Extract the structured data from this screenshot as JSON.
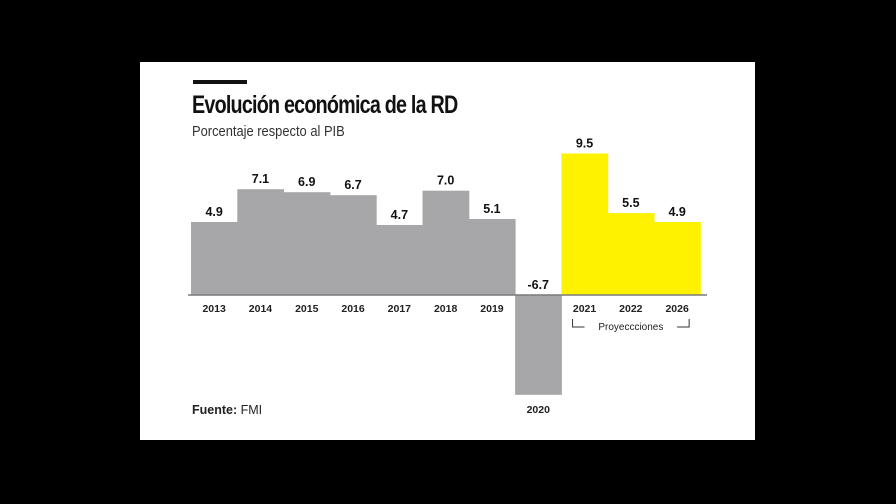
{
  "chart_data": {
    "type": "bar",
    "title": "Evolución económica de la RD",
    "subtitle": "Porcentaje respecto al PIB",
    "categories": [
      "2013",
      "2014",
      "2015",
      "2016",
      "2017",
      "2018",
      "2019",
      "2020",
      "2021",
      "2022",
      "2026"
    ],
    "values": [
      4.9,
      7.1,
      6.9,
      6.7,
      4.7,
      7.0,
      5.1,
      -6.7,
      9.5,
      5.5,
      4.9
    ],
    "labels": [
      "4.9",
      "7.1",
      "6.9",
      "6.7",
      "4.7",
      "7.0",
      "5.1",
      "-6.7",
      "9.5",
      "5.5",
      "4.9"
    ],
    "projected": [
      false,
      false,
      false,
      false,
      false,
      false,
      false,
      false,
      true,
      true,
      true
    ],
    "projection_label": "Proyeccciones",
    "ylim": [
      -6.7,
      9.5
    ],
    "grid": false,
    "colors": {
      "historical": "#a7a7a9",
      "projected": "#fff200",
      "baseline": "#7a7a7a"
    }
  },
  "source": {
    "label": "Fuente:",
    "value": "FMI"
  }
}
